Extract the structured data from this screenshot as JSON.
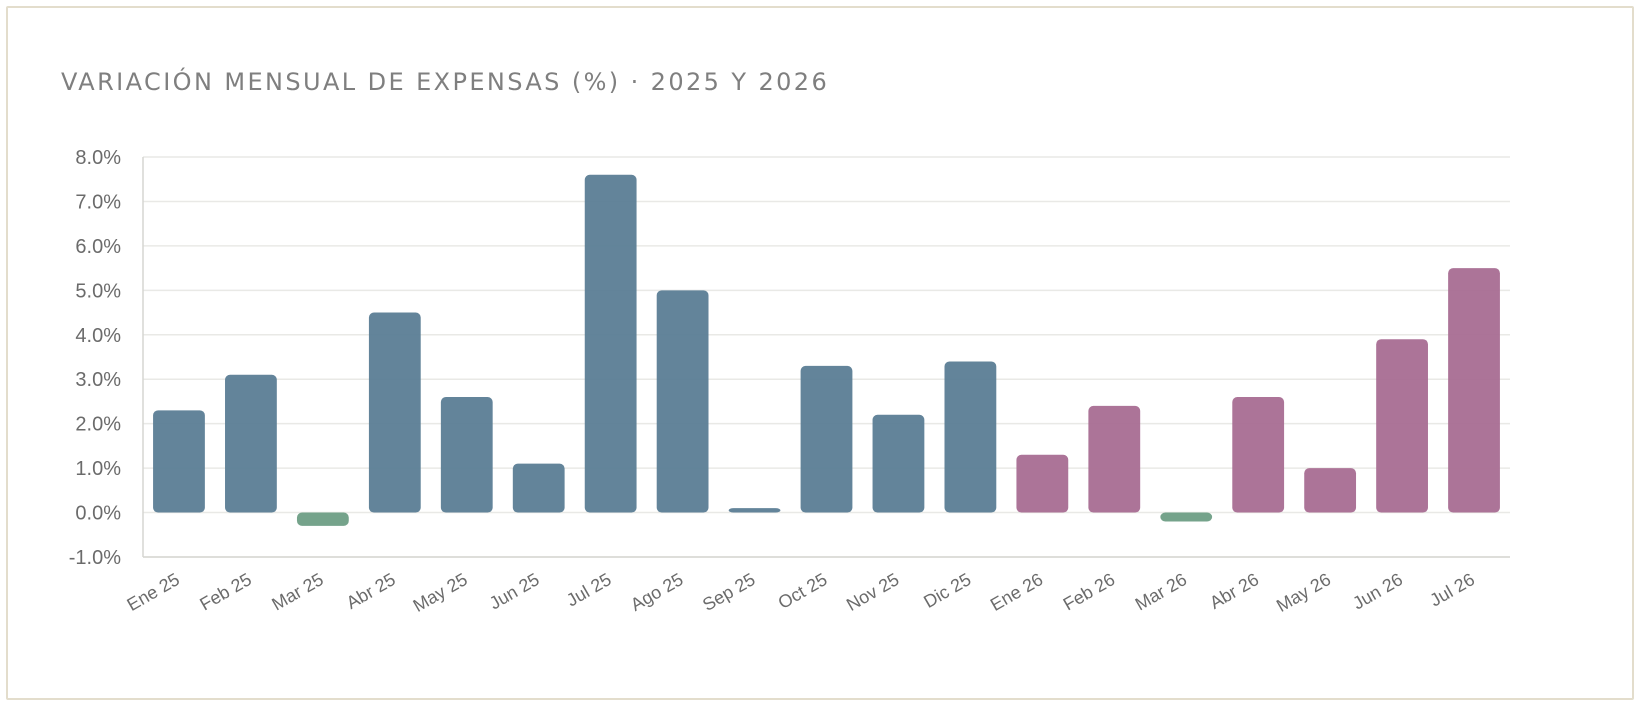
{
  "chart_data": {
    "type": "bar",
    "title": "VARIACIÓN MENSUAL DE EXPENSAS (%) · 2025 Y 2026",
    "xlabel": "",
    "ylabel": "",
    "ylim": [
      -1,
      8
    ],
    "y_ticks": [
      8,
      7,
      6,
      5,
      4,
      3,
      2,
      1,
      0,
      -1
    ],
    "y_tick_labels": [
      "8.0%",
      "7.0%",
      "6.0%",
      "5.0%",
      "4.0%",
      "3.0%",
      "2.0%",
      "1.0%",
      "0.0%",
      "-1.0%"
    ],
    "grid": true,
    "legend": "none",
    "categories": [
      "Ene 25",
      "Feb 25",
      "Mar 25",
      "Abr 25",
      "May 25",
      "Jun 25",
      "Jul 25",
      "Ago 25",
      "Sep 25",
      "Oct 25",
      "Nov 25",
      "Dic 25",
      "Ene 26",
      "Feb 26",
      "Mar 26",
      "Abr 26",
      "May 26",
      "Jun 26",
      "Jul 26"
    ],
    "values": [
      2.3,
      3.1,
      -0.3,
      4.5,
      2.6,
      1.1,
      7.6,
      5.0,
      0.1,
      3.3,
      2.2,
      3.4,
      1.3,
      2.4,
      -0.2,
      2.6,
      1.0,
      3.9,
      5.5
    ],
    "bar_colors": [
      "#5b7d95",
      "#5b7d95",
      "#6e9e85",
      "#5b7d95",
      "#5b7d95",
      "#5b7d95",
      "#5b7d95",
      "#5b7d95",
      "#5b7d95",
      "#5b7d95",
      "#5b7d95",
      "#5b7d95",
      "#a86d92",
      "#a86d92",
      "#6e9e85",
      "#a86d92",
      "#a86d92",
      "#a86d92",
      "#a86d92"
    ],
    "colors": {
      "year_2025": "#5b7d95",
      "year_2026": "#a86d92",
      "negative": "#6e9e85"
    }
  }
}
